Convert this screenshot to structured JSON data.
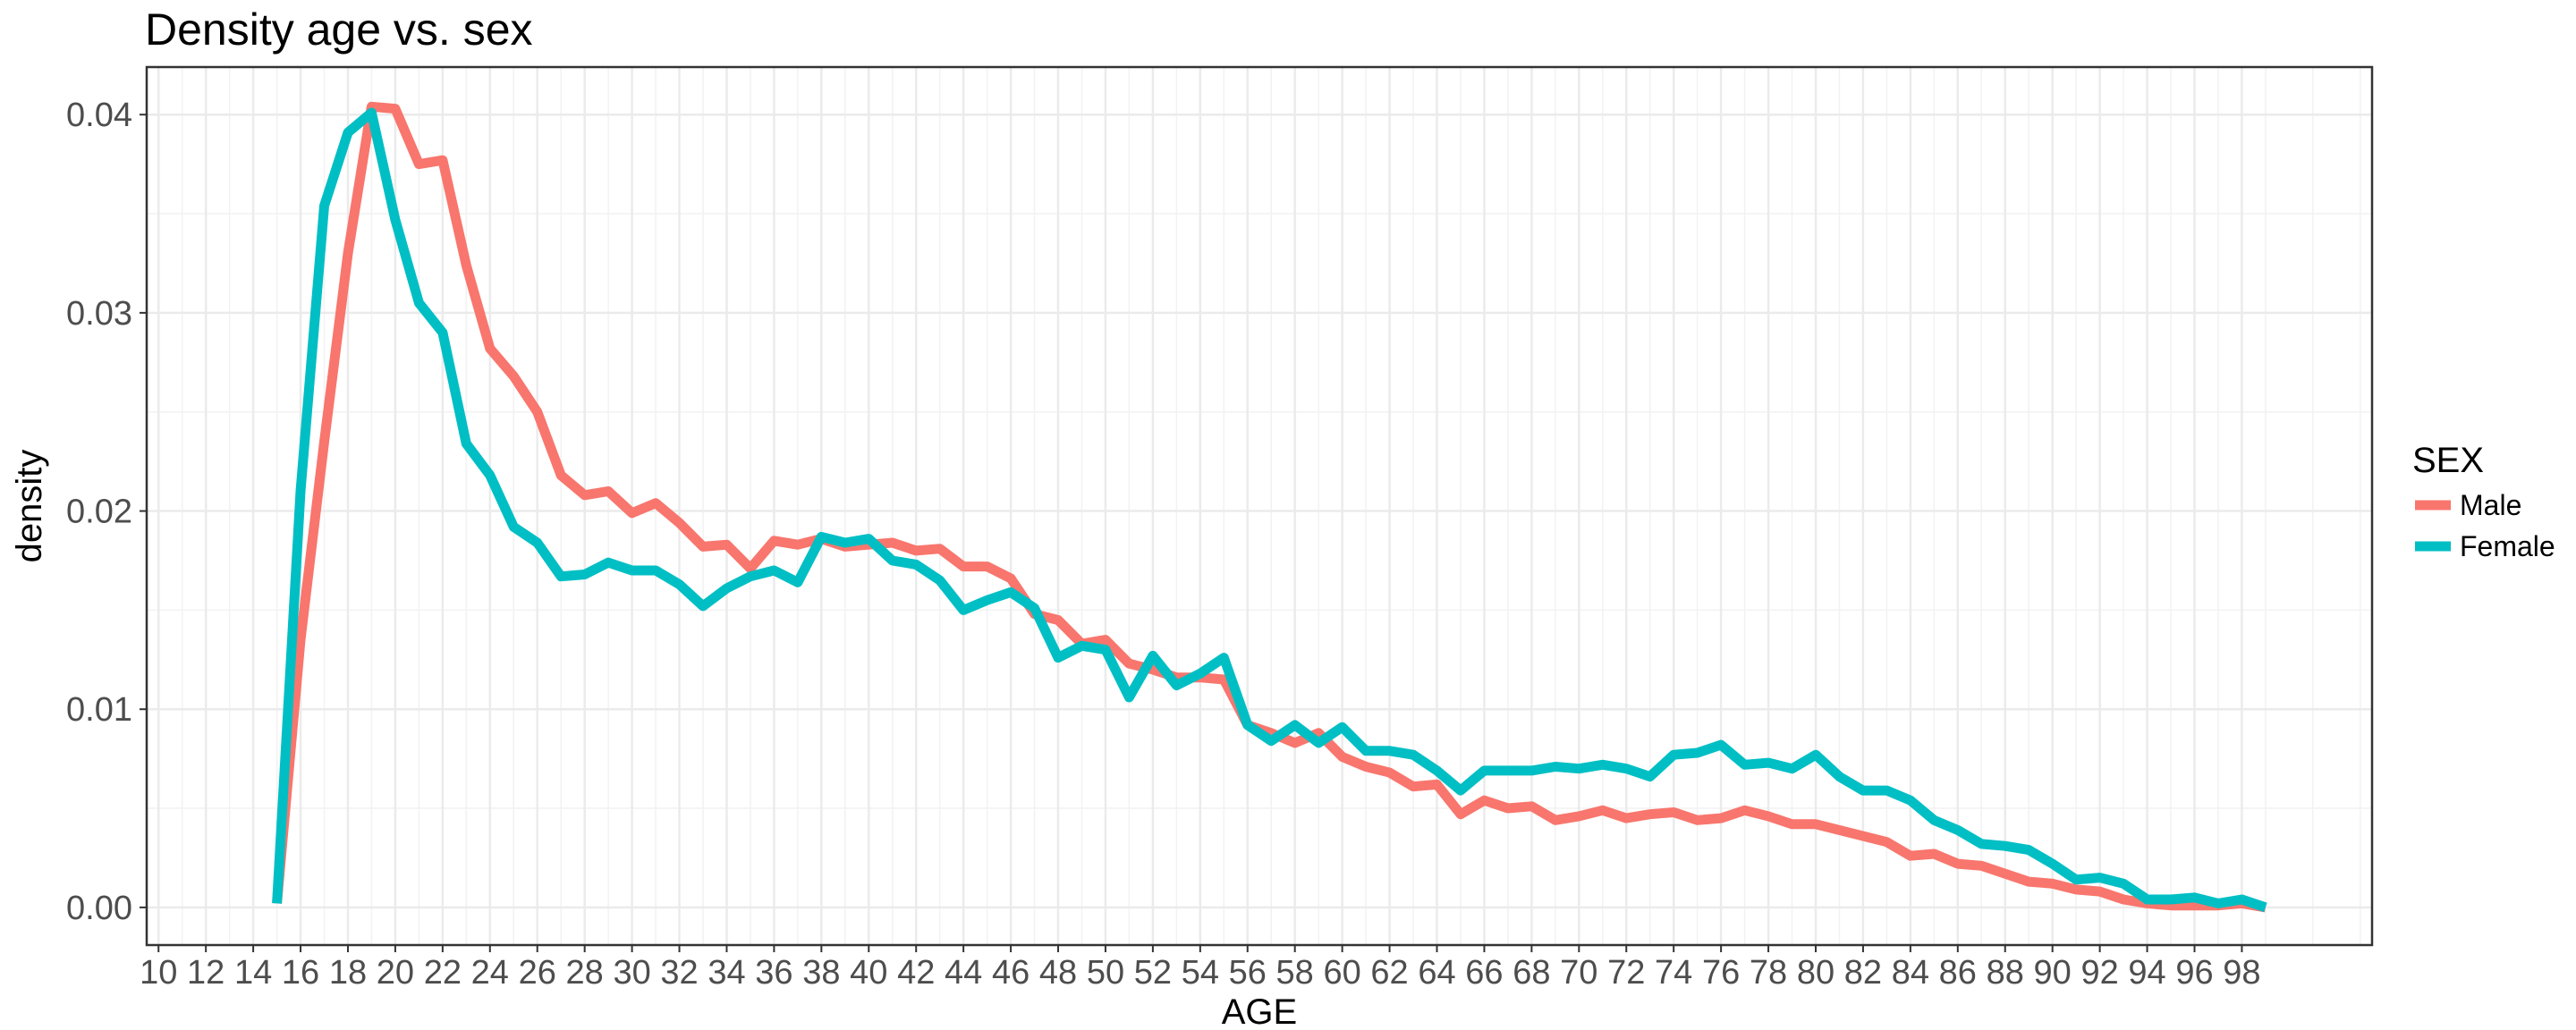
{
  "chart_data": {
    "type": "line",
    "title": "Density age vs. sex",
    "xlabel": "AGE",
    "ylabel": "density",
    "xlim": [
      9.5,
      103.5
    ],
    "ylim": [
      -0.0019,
      0.0424
    ],
    "x_ticks": [
      "10",
      "12",
      "14",
      "16",
      "18",
      "20",
      "22",
      "24",
      "26",
      "28",
      "30",
      "32",
      "34",
      "36",
      "38",
      "40",
      "42",
      "44",
      "46",
      "48",
      "50",
      "52",
      "54",
      "56",
      "58",
      "60",
      "62",
      "64",
      "66",
      "68",
      "70",
      "72",
      "74",
      "76",
      "78",
      "80",
      "82",
      "84",
      "86",
      "88",
      "90",
      "92",
      "94",
      "96",
      "98"
    ],
    "y_ticks": [
      "0.00",
      "0.01",
      "0.02",
      "0.03",
      "0.04"
    ],
    "grid": true,
    "legend": {
      "title": "SEX",
      "position": "right"
    },
    "x": [
      15,
      16,
      17,
      18,
      19,
      20,
      21,
      22,
      23,
      24,
      25,
      26,
      27,
      28,
      29,
      30,
      31,
      32,
      33,
      34,
      35,
      36,
      37,
      38,
      39,
      40,
      41,
      42,
      43,
      44,
      45,
      46,
      47,
      48,
      49,
      50,
      51,
      52,
      53,
      54,
      55,
      56,
      57,
      58,
      59,
      60,
      61,
      62,
      63,
      64,
      65,
      66,
      67,
      68,
      69,
      70,
      71,
      72,
      73,
      74,
      75,
      76,
      77,
      78,
      79,
      80,
      81,
      82,
      83,
      84,
      85,
      86,
      87,
      88,
      89,
      90,
      91,
      92,
      93,
      94,
      95,
      96,
      97,
      98,
      99
    ],
    "series": [
      {
        "name": "Male",
        "color": "#F8766D",
        "values": [
          0.0002,
          0.0135,
          0.0235,
          0.033,
          0.0404,
          0.0403,
          0.0375,
          0.0377,
          0.0324,
          0.0282,
          0.0268,
          0.025,
          0.0218,
          0.0208,
          0.021,
          0.0199,
          0.0204,
          0.0194,
          0.0182,
          0.0183,
          0.0171,
          0.0185,
          0.0183,
          0.0186,
          0.0182,
          0.0183,
          0.0184,
          0.018,
          0.0181,
          0.0172,
          0.0172,
          0.0166,
          0.0148,
          0.0145,
          0.0133,
          0.0135,
          0.0123,
          0.012,
          0.0116,
          0.0116,
          0.0115,
          0.0092,
          0.0088,
          0.0083,
          0.0088,
          0.0076,
          0.0071,
          0.0068,
          0.0061,
          0.0062,
          0.0047,
          0.0054,
          0.005,
          0.0051,
          0.0044,
          0.0046,
          0.0049,
          0.0045,
          0.0047,
          0.0048,
          0.0044,
          0.0045,
          0.0049,
          0.0046,
          0.0042,
          0.0042,
          0.0039,
          0.0036,
          0.0033,
          0.0026,
          0.0027,
          0.0022,
          0.0021,
          0.0017,
          0.0013,
          0.0012,
          0.0009,
          0.0008,
          0.0004,
          0.0002,
          0.0001,
          0.0001,
          0.0001,
          0.0002,
          0.0
        ]
      },
      {
        "name": "Female",
        "color": "#00BFC4",
        "values": [
          0.0002,
          0.021,
          0.0354,
          0.0391,
          0.0401,
          0.0347,
          0.0305,
          0.029,
          0.0234,
          0.0218,
          0.0192,
          0.0184,
          0.0167,
          0.0168,
          0.0174,
          0.017,
          0.017,
          0.0163,
          0.0152,
          0.0161,
          0.0167,
          0.017,
          0.0164,
          0.0187,
          0.0184,
          0.0186,
          0.0175,
          0.0173,
          0.0165,
          0.015,
          0.0155,
          0.0159,
          0.0151,
          0.0126,
          0.0132,
          0.013,
          0.0106,
          0.0127,
          0.0112,
          0.0118,
          0.0126,
          0.0092,
          0.0084,
          0.0092,
          0.0083,
          0.0091,
          0.0079,
          0.0079,
          0.0077,
          0.0069,
          0.0059,
          0.0069,
          0.0069,
          0.0069,
          0.0071,
          0.007,
          0.0072,
          0.007,
          0.0066,
          0.0077,
          0.0078,
          0.0082,
          0.0072,
          0.0073,
          0.007,
          0.0077,
          0.0066,
          0.0059,
          0.0059,
          0.0054,
          0.0044,
          0.0039,
          0.0032,
          0.0031,
          0.0029,
          0.0022,
          0.0014,
          0.0015,
          0.0012,
          0.0004,
          0.0004,
          0.0005,
          0.0002,
          0.0004,
          0.0
        ]
      }
    ]
  }
}
